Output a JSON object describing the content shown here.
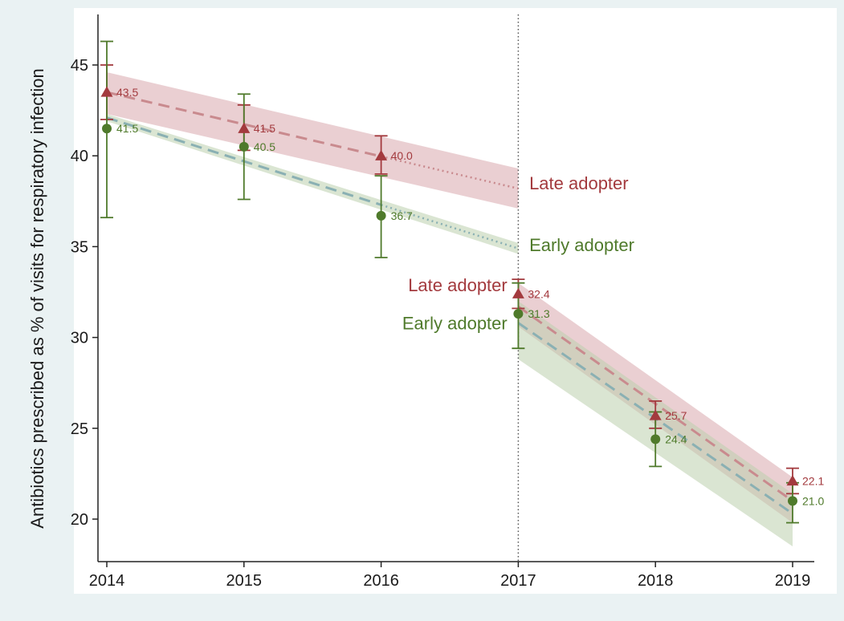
{
  "chart_data": {
    "type": "line",
    "title": "",
    "xlabel": "",
    "ylabel": "Antibiotics prescribed as % of visits for respiratory infection",
    "x_ticks": [
      2014,
      2015,
      2016,
      2017,
      2018,
      2019
    ],
    "y_ticks": [
      20,
      25,
      30,
      35,
      40,
      45
    ],
    "xlim": [
      2014,
      2019
    ],
    "ylim": [
      18,
      47
    ],
    "grid": false,
    "legend": "none (series labeled inline)",
    "vline": {
      "x": 2017,
      "style": "dotted",
      "color": "#555555"
    },
    "series": [
      {
        "name": "Late adopter",
        "marker": "triangle",
        "color": "#a33a3e",
        "band_color": "#d9a7ad",
        "x": [
          2014,
          2015,
          2016,
          2017,
          2018,
          2019
        ],
        "y": [
          43.5,
          41.5,
          40.0,
          32.4,
          25.7,
          22.1
        ],
        "labels": [
          "43.5",
          "41.5",
          "40.0",
          "32.4",
          "25.7",
          "22.1"
        ],
        "ci_low": [
          42.0,
          40.3,
          39.0,
          31.6,
          25.0,
          21.4
        ],
        "ci_high": [
          45.0,
          42.8,
          41.1,
          33.2,
          26.5,
          22.8
        ],
        "trend_pre": {
          "x": [
            2014,
            2017
          ],
          "y": [
            43.5,
            38.2
          ],
          "dashed_until": 2016,
          "band_low": [
            42.3,
            37.1
          ],
          "band_high": [
            44.6,
            39.3
          ]
        },
        "trend_post": {
          "x": [
            2017,
            2019
          ],
          "y": [
            31.7,
            21.0
          ],
          "band_low": [
            30.6,
            19.8
          ],
          "band_high": [
            33.0,
            22.3
          ]
        }
      },
      {
        "name": "Early adopter",
        "marker": "circle",
        "color": "#4f7a2b",
        "band_color": "#bccfad",
        "x": [
          2014,
          2015,
          2016,
          2017,
          2018,
          2019
        ],
        "y": [
          41.5,
          40.5,
          36.7,
          31.3,
          24.4,
          21.0
        ],
        "labels": [
          "41.5",
          "40.5",
          "36.7",
          "31.3",
          "24.4",
          "21.0"
        ],
        "ci_low": [
          36.6,
          37.6,
          34.4,
          29.4,
          22.9,
          19.8
        ],
        "ci_high": [
          46.3,
          43.4,
          38.9,
          33.0,
          25.9,
          22.0
        ],
        "trend_pre": {
          "x": [
            2014,
            2017
          ],
          "y": [
            42.1,
            34.9
          ],
          "dashed_until": 2016,
          "band_low": [
            41.9,
            34.6
          ],
          "band_high": [
            42.3,
            35.2
          ]
        },
        "trend_post": {
          "x": [
            2017,
            2019
          ],
          "y": [
            30.8,
            20.3
          ],
          "band_low": [
            28.8,
            18.5
          ],
          "band_high": [
            32.0,
            21.4
          ]
        }
      }
    ],
    "annotations": [
      {
        "text": "Late adopter",
        "x": 2017.08,
        "y": 38.5,
        "anchor": "start",
        "color": "#a33a3e"
      },
      {
        "text": "Early adopter",
        "x": 2017.08,
        "y": 35.1,
        "anchor": "start",
        "color": "#4f7a2b"
      },
      {
        "text": "Late adopter",
        "x": 2016.92,
        "y": 32.9,
        "anchor": "end",
        "color": "#a33a3e"
      },
      {
        "text": "Early adopter",
        "x": 2016.92,
        "y": 30.8,
        "anchor": "end",
        "color": "#4f7a2b"
      }
    ]
  }
}
